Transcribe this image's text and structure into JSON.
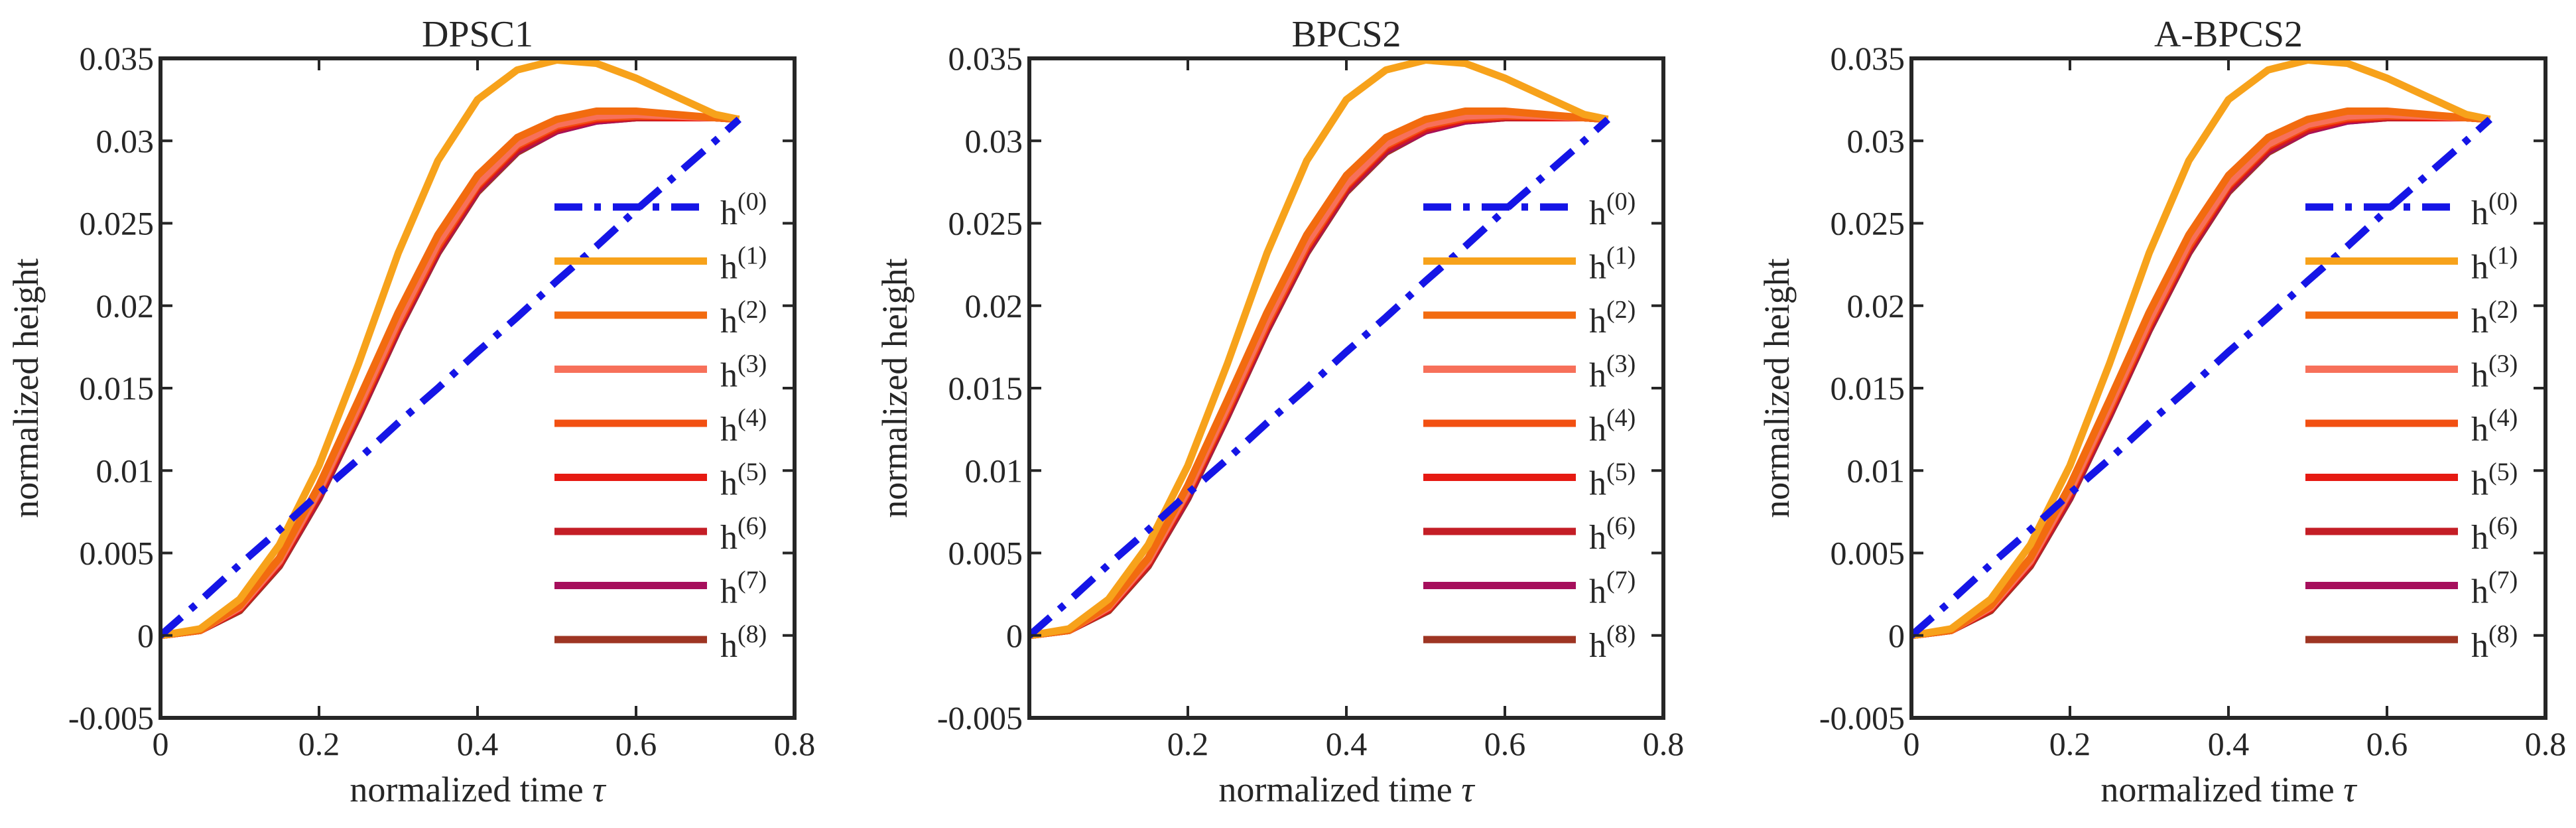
{
  "figure": {
    "x_label_main": "normalized time",
    "x_label_symbol": "τ",
    "y_label": "normalized height"
  },
  "legend_prefix": "h",
  "chart_data": [
    {
      "type": "line",
      "title": "DPSC1",
      "xlim": [
        0,
        0.8
      ],
      "ylim": [
        -0.005,
        0.035
      ],
      "x_ticks": [
        0,
        0.2,
        0.4,
        0.6,
        0.8
      ],
      "x_tick_labels": [
        "0",
        "0.2",
        "0.4",
        "0.6",
        "0.8"
      ],
      "y_ticks": [
        -0.005,
        0,
        0.005,
        0.01,
        0.015,
        0.02,
        0.025,
        0.03,
        0.035
      ],
      "y_tick_labels": [
        "-0.005",
        "0",
        "0.005",
        "0.01",
        "0.015",
        "0.02",
        "0.025",
        "0.03",
        "0.035"
      ],
      "grid": false,
      "legend_position": "right-middle",
      "x": [
        0,
        0.05,
        0.1,
        0.15,
        0.2,
        0.25,
        0.3,
        0.35,
        0.4,
        0.45,
        0.5,
        0.55,
        0.6,
        0.65,
        0.7,
        0.73
      ],
      "series": [
        {
          "name": "(0)",
          "color": "#1515e6",
          "style": "dashdot",
          "values": [
            0,
            0.0021,
            0.0043,
            0.0064,
            0.0086,
            0.0107,
            0.0129,
            0.015,
            0.0172,
            0.0193,
            0.0215,
            0.0236,
            0.0258,
            0.0279,
            0.03,
            0.0313
          ]
        },
        {
          "name": "(1)",
          "color": "#f7a21b",
          "style": "solid",
          "values": [
            0,
            0.0004,
            0.0022,
            0.0055,
            0.0103,
            0.0165,
            0.0232,
            0.0288,
            0.0325,
            0.0343,
            0.0349,
            0.0347,
            0.0338,
            0.0327,
            0.0316,
            0.0313
          ]
        },
        {
          "name": "(2)",
          "color": "#f26b0f",
          "style": "solid",
          "values": [
            0,
            0.0003,
            0.0018,
            0.0047,
            0.0091,
            0.0143,
            0.0196,
            0.0243,
            0.0279,
            0.0302,
            0.0313,
            0.0318,
            0.0318,
            0.0316,
            0.0314,
            0.0313
          ]
        },
        {
          "name": "(3)",
          "color": "#f7705a",
          "style": "solid",
          "values": [
            0,
            0.0003,
            0.0017,
            0.0045,
            0.0088,
            0.0139,
            0.0191,
            0.0238,
            0.0274,
            0.0298,
            0.031,
            0.0315,
            0.0316,
            0.0315,
            0.0314,
            0.0313
          ]
        },
        {
          "name": "(4)",
          "color": "#f25012",
          "style": "solid",
          "values": [
            0,
            0.0003,
            0.0017,
            0.0045,
            0.0087,
            0.0137,
            0.0189,
            0.0236,
            0.0273,
            0.0297,
            0.0309,
            0.0314,
            0.0315,
            0.0315,
            0.0314,
            0.0313
          ]
        },
        {
          "name": "(5)",
          "color": "#e61a12",
          "style": "solid",
          "values": [
            0,
            0.0003,
            0.0016,
            0.0044,
            0.0086,
            0.0136,
            0.0188,
            0.0235,
            0.0272,
            0.0296,
            0.0308,
            0.0313,
            0.0315,
            0.0314,
            0.0314,
            0.0313
          ]
        },
        {
          "name": "(6)",
          "color": "#c41e26",
          "style": "solid",
          "values": [
            0,
            0.0003,
            0.0016,
            0.0043,
            0.0085,
            0.0135,
            0.0187,
            0.0234,
            0.0271,
            0.0295,
            0.0307,
            0.0313,
            0.0314,
            0.0314,
            0.0314,
            0.0313
          ]
        },
        {
          "name": "(7)",
          "color": "#a60f5c",
          "style": "solid",
          "values": [
            0,
            0.0003,
            0.0016,
            0.0043,
            0.0084,
            0.0134,
            0.0186,
            0.0233,
            0.027,
            0.0294,
            0.0306,
            0.0312,
            0.0314,
            0.0314,
            0.0314,
            0.0313
          ]
        },
        {
          "name": "(8)",
          "color": "#9e3523",
          "style": "solid",
          "values": [
            0,
            0.0003,
            0.0015,
            0.0042,
            0.0083,
            0.0133,
            0.0185,
            0.0232,
            0.0269,
            0.0293,
            0.0306,
            0.0312,
            0.0314,
            0.0314,
            0.0314,
            0.0313
          ]
        }
      ]
    },
    {
      "type": "line",
      "title": "BPCS2",
      "xlim": [
        0,
        0.8
      ],
      "ylim": [
        -0.005,
        0.035
      ],
      "x_ticks": [
        0.2,
        0.4,
        0.6,
        0.8
      ],
      "x_tick_labels": [
        "0.2",
        "0.4",
        "0.6",
        "0.8"
      ],
      "y_ticks": [
        -0.005,
        0,
        0.005,
        0.01,
        0.015,
        0.02,
        0.025,
        0.03,
        0.035
      ],
      "y_tick_labels": [
        "-0.005",
        "0",
        "0.005",
        "0.01",
        "0.015",
        "0.02",
        "0.025",
        "0.03",
        "0.035"
      ],
      "grid": false,
      "legend_position": "right-middle",
      "x": [
        0,
        0.05,
        0.1,
        0.15,
        0.2,
        0.25,
        0.3,
        0.35,
        0.4,
        0.45,
        0.5,
        0.55,
        0.6,
        0.65,
        0.7,
        0.73
      ],
      "series": [
        {
          "name": "(0)",
          "color": "#1515e6",
          "style": "dashdot",
          "values": [
            0,
            0.0021,
            0.0043,
            0.0064,
            0.0086,
            0.0107,
            0.0129,
            0.015,
            0.0172,
            0.0193,
            0.0215,
            0.0236,
            0.0258,
            0.0279,
            0.03,
            0.0313
          ]
        },
        {
          "name": "(1)",
          "color": "#f7a21b",
          "style": "solid",
          "values": [
            0,
            0.0004,
            0.0022,
            0.0055,
            0.0103,
            0.0165,
            0.0232,
            0.0288,
            0.0325,
            0.0343,
            0.0349,
            0.0347,
            0.0338,
            0.0327,
            0.0316,
            0.0313
          ]
        },
        {
          "name": "(2)",
          "color": "#f26b0f",
          "style": "solid",
          "values": [
            0,
            0.0003,
            0.0018,
            0.0047,
            0.0091,
            0.0143,
            0.0196,
            0.0243,
            0.0279,
            0.0302,
            0.0313,
            0.0318,
            0.0318,
            0.0316,
            0.0314,
            0.0313
          ]
        },
        {
          "name": "(3)",
          "color": "#f7705a",
          "style": "solid",
          "values": [
            0,
            0.0003,
            0.0017,
            0.0045,
            0.0088,
            0.0139,
            0.0191,
            0.0238,
            0.0274,
            0.0298,
            0.031,
            0.0315,
            0.0316,
            0.0315,
            0.0314,
            0.0313
          ]
        },
        {
          "name": "(4)",
          "color": "#f25012",
          "style": "solid",
          "values": [
            0,
            0.0003,
            0.0017,
            0.0045,
            0.0087,
            0.0137,
            0.0189,
            0.0236,
            0.0273,
            0.0297,
            0.0309,
            0.0314,
            0.0315,
            0.0315,
            0.0314,
            0.0313
          ]
        },
        {
          "name": "(5)",
          "color": "#e61a12",
          "style": "solid",
          "values": [
            0,
            0.0003,
            0.0016,
            0.0044,
            0.0086,
            0.0136,
            0.0188,
            0.0235,
            0.0272,
            0.0296,
            0.0308,
            0.0313,
            0.0315,
            0.0314,
            0.0314,
            0.0313
          ]
        },
        {
          "name": "(6)",
          "color": "#c41e26",
          "style": "solid",
          "values": [
            0,
            0.0003,
            0.0016,
            0.0043,
            0.0085,
            0.0135,
            0.0187,
            0.0234,
            0.0271,
            0.0295,
            0.0307,
            0.0313,
            0.0314,
            0.0314,
            0.0314,
            0.0313
          ]
        },
        {
          "name": "(7)",
          "color": "#a60f5c",
          "style": "solid",
          "values": [
            0,
            0.0003,
            0.0016,
            0.0043,
            0.0084,
            0.0134,
            0.0186,
            0.0233,
            0.027,
            0.0294,
            0.0306,
            0.0312,
            0.0314,
            0.0314,
            0.0314,
            0.0313
          ]
        },
        {
          "name": "(8)",
          "color": "#9e3523",
          "style": "solid",
          "values": [
            0,
            0.0003,
            0.0015,
            0.0042,
            0.0083,
            0.0133,
            0.0185,
            0.0232,
            0.0269,
            0.0293,
            0.0306,
            0.0312,
            0.0314,
            0.0314,
            0.0314,
            0.0313
          ]
        }
      ]
    },
    {
      "type": "line",
      "title": "A-BPCS2",
      "xlim": [
        0,
        0.8
      ],
      "ylim": [
        -0.005,
        0.035
      ],
      "x_ticks": [
        0,
        0.2,
        0.4,
        0.6,
        0.8
      ],
      "x_tick_labels": [
        "0",
        "0.2",
        "0.4",
        "0.6",
        "0.8"
      ],
      "y_ticks": [
        -0.005,
        0,
        0.005,
        0.01,
        0.015,
        0.02,
        0.025,
        0.03,
        0.035
      ],
      "y_tick_labels": [
        "-0.005",
        "0",
        "0.005",
        "0.01",
        "0.015",
        "0.02",
        "0.025",
        "0.03",
        "0.035"
      ],
      "grid": false,
      "legend_position": "right-middle",
      "x": [
        0,
        0.05,
        0.1,
        0.15,
        0.2,
        0.25,
        0.3,
        0.35,
        0.4,
        0.45,
        0.5,
        0.55,
        0.6,
        0.65,
        0.7,
        0.73
      ],
      "series": [
        {
          "name": "(0)",
          "color": "#1515e6",
          "style": "dashdot",
          "values": [
            0,
            0.0021,
            0.0043,
            0.0064,
            0.0086,
            0.0107,
            0.0129,
            0.015,
            0.0172,
            0.0193,
            0.0215,
            0.0236,
            0.0258,
            0.0279,
            0.03,
            0.0313
          ]
        },
        {
          "name": "(1)",
          "color": "#f7a21b",
          "style": "solid",
          "values": [
            0,
            0.0004,
            0.0022,
            0.0055,
            0.0103,
            0.0165,
            0.0232,
            0.0288,
            0.0325,
            0.0343,
            0.0349,
            0.0347,
            0.0338,
            0.0327,
            0.0316,
            0.0313
          ]
        },
        {
          "name": "(2)",
          "color": "#f26b0f",
          "style": "solid",
          "values": [
            0,
            0.0003,
            0.0018,
            0.0047,
            0.0091,
            0.0143,
            0.0196,
            0.0243,
            0.0279,
            0.0302,
            0.0313,
            0.0318,
            0.0318,
            0.0316,
            0.0314,
            0.0313
          ]
        },
        {
          "name": "(3)",
          "color": "#f7705a",
          "style": "solid",
          "values": [
            0,
            0.0003,
            0.0017,
            0.0045,
            0.0088,
            0.0139,
            0.0191,
            0.0238,
            0.0274,
            0.0298,
            0.031,
            0.0315,
            0.0316,
            0.0315,
            0.0314,
            0.0313
          ]
        },
        {
          "name": "(4)",
          "color": "#f25012",
          "style": "solid",
          "values": [
            0,
            0.0003,
            0.0017,
            0.0045,
            0.0087,
            0.0137,
            0.0189,
            0.0236,
            0.0273,
            0.0297,
            0.0309,
            0.0314,
            0.0315,
            0.0315,
            0.0314,
            0.0313
          ]
        },
        {
          "name": "(5)",
          "color": "#e61a12",
          "style": "solid",
          "values": [
            0,
            0.0003,
            0.0016,
            0.0044,
            0.0086,
            0.0136,
            0.0188,
            0.0235,
            0.0272,
            0.0296,
            0.0308,
            0.0313,
            0.0315,
            0.0314,
            0.0314,
            0.0313
          ]
        },
        {
          "name": "(6)",
          "color": "#c41e26",
          "style": "solid",
          "values": [
            0,
            0.0003,
            0.0016,
            0.0043,
            0.0085,
            0.0135,
            0.0187,
            0.0234,
            0.0271,
            0.0295,
            0.0307,
            0.0313,
            0.0314,
            0.0314,
            0.0314,
            0.0313
          ]
        },
        {
          "name": "(7)",
          "color": "#a60f5c",
          "style": "solid",
          "values": [
            0,
            0.0003,
            0.0016,
            0.0043,
            0.0084,
            0.0134,
            0.0186,
            0.0233,
            0.027,
            0.0294,
            0.0306,
            0.0312,
            0.0314,
            0.0314,
            0.0314,
            0.0313
          ]
        },
        {
          "name": "(8)",
          "color": "#9e3523",
          "style": "solid",
          "values": [
            0,
            0.0003,
            0.0015,
            0.0042,
            0.0083,
            0.0133,
            0.0185,
            0.0232,
            0.0269,
            0.0293,
            0.0306,
            0.0312,
            0.0314,
            0.0314,
            0.0314,
            0.0313
          ]
        }
      ]
    }
  ]
}
